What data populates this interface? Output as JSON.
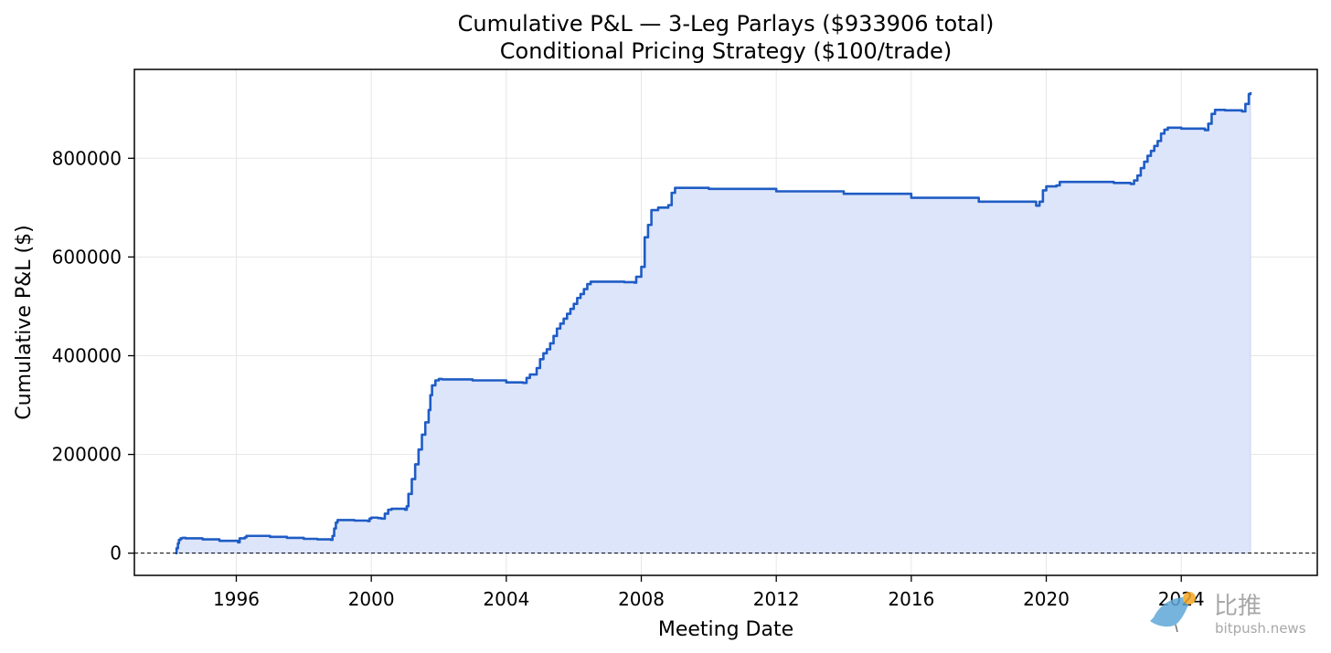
{
  "chart_data": {
    "type": "area",
    "title": "Cumulative P&L — 3-Leg Parlays ($933906 total)",
    "subtitle": "Conditional Pricing Strategy ($100/trade)",
    "xlabel": "Meeting Date",
    "ylabel": "Cumulative P&L ($)",
    "x_type": "date_year",
    "xlim": [
      1992.98,
      2028.03
    ],
    "ylim": [
      -45000,
      980000
    ],
    "x_ticks": [
      1996,
      2000,
      2004,
      2008,
      2012,
      2016,
      2020,
      2024
    ],
    "x_tick_labels": [
      "1996",
      "2000",
      "2004",
      "2008",
      "2012",
      "2016",
      "2020",
      "2024"
    ],
    "y_ticks": [
      0,
      200000,
      400000,
      600000,
      800000
    ],
    "y_tick_labels": [
      "0",
      "200000",
      "400000",
      "600000",
      "800000"
    ],
    "grid": true,
    "zero_line": "dashed",
    "line_color": "#1f5cc4",
    "fill_color": "#dde5fb",
    "series": [
      {
        "x": [
          1994.2,
          1994.23,
          1994.27,
          1994.3,
          1994.35,
          1994.4,
          1994.5,
          1995.0,
          1995.5,
          1996.05,
          1996.1,
          1996.25,
          1996.3,
          1997.0,
          1997.5,
          1998.0,
          1998.4,
          1998.8,
          1998.85,
          1998.9,
          1998.95,
          1999.0,
          1999.5,
          1999.9,
          1999.95,
          2000.0,
          2000.2,
          2000.3,
          2000.4,
          2000.5,
          2000.6,
          2001.0,
          2001.05,
          2001.1,
          2001.2,
          2001.3,
          2001.4,
          2001.5,
          2001.6,
          2001.7,
          2001.75,
          2001.8,
          2001.9,
          2002.0,
          2002.1,
          2003.0,
          2004.0,
          2004.5,
          2004.6,
          2004.7,
          2004.9,
          2005.0,
          2005.1,
          2005.2,
          2005.3,
          2005.4,
          2005.5,
          2005.6,
          2005.7,
          2005.8,
          2005.9,
          2006.0,
          2006.1,
          2006.2,
          2006.3,
          2006.4,
          2006.5,
          2007.0,
          2007.5,
          2007.8,
          2007.85,
          2008.0,
          2008.1,
          2008.2,
          2008.3,
          2008.5,
          2008.8,
          2008.9,
          2009.0,
          2010.0,
          2012.0,
          2014.0,
          2016.0,
          2018.0,
          2019.7,
          2019.8,
          2019.9,
          2020.0,
          2020.3,
          2020.4,
          2021.0,
          2022.0,
          2022.5,
          2022.6,
          2022.7,
          2022.8,
          2022.9,
          2023.0,
          2023.1,
          2023.2,
          2023.3,
          2023.4,
          2023.5,
          2023.6,
          2024.0,
          2024.7,
          2024.8,
          2024.9,
          2025.0,
          2025.3,
          2025.8,
          2025.9,
          2026.0,
          2026.05
        ],
        "y": [
          0,
          10000,
          20000,
          27000,
          30000,
          31000,
          30000,
          28000,
          25000,
          22000,
          30000,
          32000,
          35000,
          33000,
          31000,
          29000,
          28000,
          27000,
          35000,
          50000,
          62000,
          67000,
          66000,
          65000,
          70000,
          72000,
          71000,
          70000,
          80000,
          88000,
          90000,
          88000,
          95000,
          120000,
          150000,
          180000,
          210000,
          240000,
          265000,
          290000,
          320000,
          340000,
          350000,
          353000,
          352000,
          350000,
          346000,
          345000,
          355000,
          362000,
          375000,
          393000,
          405000,
          413000,
          425000,
          440000,
          455000,
          465000,
          475000,
          485000,
          495000,
          505000,
          517000,
          525000,
          535000,
          545000,
          550000,
          550000,
          549000,
          548000,
          560000,
          580000,
          640000,
          665000,
          695000,
          700000,
          705000,
          730000,
          740000,
          738000,
          733000,
          728000,
          720000,
          712000,
          704000,
          712000,
          735000,
          743000,
          745000,
          752000,
          752000,
          750000,
          748000,
          755000,
          765000,
          780000,
          793000,
          805000,
          815000,
          825000,
          835000,
          850000,
          858000,
          862000,
          860000,
          857000,
          870000,
          890000,
          898000,
          897000,
          895000,
          910000,
          930000,
          933906
        ]
      }
    ]
  },
  "watermark": {
    "brand": "比推",
    "domain": "bitpush.news"
  }
}
